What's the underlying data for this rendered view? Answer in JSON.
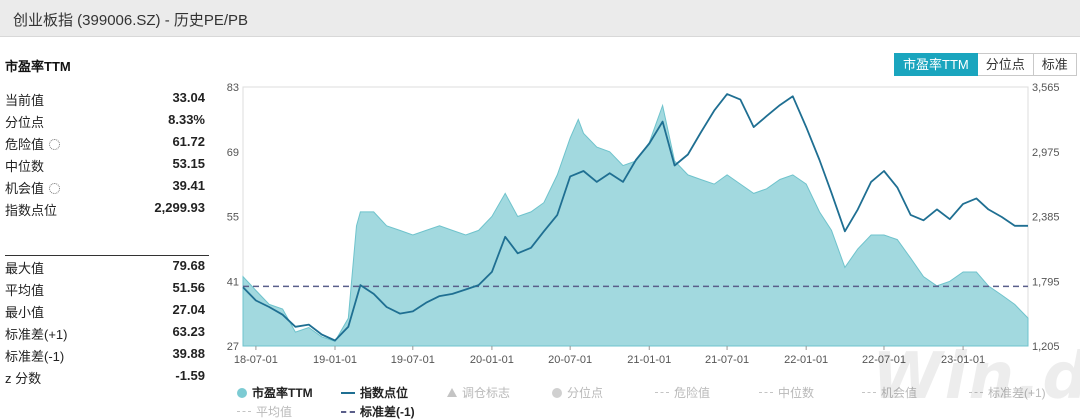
{
  "window": {
    "title": "创业板指 (399006.SZ) - 历史PE/PB"
  },
  "stats": {
    "heading": "市盈率TTM",
    "top": [
      {
        "label": "当前值",
        "value": "33.04",
        "gear": false
      },
      {
        "label": "分位点",
        "value": "8.33%",
        "gear": false
      },
      {
        "label": "危险值",
        "value": "61.72",
        "gear": true
      },
      {
        "label": "中位数",
        "value": "53.15",
        "gear": false
      },
      {
        "label": "机会值",
        "value": "39.41",
        "gear": true
      },
      {
        "label": "指数点位",
        "value": "2,299.93",
        "gear": false
      }
    ],
    "bottom": [
      {
        "label": "最大值",
        "value": "79.68"
      },
      {
        "label": "平均值",
        "value": "51.56"
      },
      {
        "label": "最小值",
        "value": "27.04"
      },
      {
        "label": "标准差(+1)",
        "value": "63.23"
      },
      {
        "label": "标准差(-1)",
        "value": "39.88"
      },
      {
        "label": "z 分数",
        "value": "-1.59"
      }
    ]
  },
  "tabs": [
    {
      "label": "市盈率TTM",
      "active": true
    },
    {
      "label": "分位点",
      "active": false
    },
    {
      "label": "标准",
      "active": false
    }
  ],
  "colors": {
    "pe_fill": "#a2d9df",
    "pe_stroke": "#6fc3cc",
    "index_line": "#1f6f92",
    "std_minus_line": "#5a5e8a",
    "active_tab": "#1aa5be"
  },
  "chart_data": {
    "type": "area",
    "x_tick_labels": [
      "18-07-01",
      "19-01-01",
      "19-07-01",
      "20-01-01",
      "20-07-01",
      "21-01-01",
      "21-07-01",
      "22-01-01",
      "22-07-01",
      "23-01-01"
    ],
    "x_ticks": [
      "2018-07-01",
      "2019-01-01",
      "2019-07-01",
      "2020-01-01",
      "2020-07-01",
      "2021-01-01",
      "2021-07-01",
      "2022-01-01",
      "2022-07-01",
      "2023-01-01"
    ],
    "xlim": [
      "2018-06-01",
      "2023-06-01"
    ],
    "y_left": {
      "ticks": [
        "27",
        "41",
        "55",
        "69",
        "83"
      ],
      "ylim": [
        27,
        83
      ]
    },
    "y_right": {
      "ticks": [
        "1,205",
        "1,795",
        "2,385",
        "2,975",
        "3,565"
      ],
      "ylim": [
        1205,
        3565
      ]
    },
    "std_minus_1": 39.88,
    "series": [
      {
        "name": "市盈率TTM",
        "axis": "left",
        "points": [
          [
            "2018-06-01",
            42
          ],
          [
            "2018-07-01",
            39
          ],
          [
            "2018-08-01",
            36
          ],
          [
            "2018-09-01",
            35
          ],
          [
            "2018-10-01",
            30
          ],
          [
            "2018-11-01",
            31
          ],
          [
            "2018-12-01",
            29
          ],
          [
            "2019-01-01",
            28
          ],
          [
            "2019-02-01",
            33
          ],
          [
            "2019-02-20",
            53
          ],
          [
            "2019-03-01",
            56
          ],
          [
            "2019-04-01",
            56
          ],
          [
            "2019-05-01",
            53
          ],
          [
            "2019-06-01",
            52
          ],
          [
            "2019-07-01",
            51
          ],
          [
            "2019-08-01",
            52
          ],
          [
            "2019-09-01",
            53
          ],
          [
            "2019-10-01",
            52
          ],
          [
            "2019-11-01",
            51
          ],
          [
            "2019-12-01",
            52
          ],
          [
            "2020-01-01",
            55
          ],
          [
            "2020-02-01",
            60
          ],
          [
            "2020-03-01",
            55
          ],
          [
            "2020-04-01",
            56
          ],
          [
            "2020-05-01",
            58
          ],
          [
            "2020-06-01",
            64
          ],
          [
            "2020-07-01",
            72
          ],
          [
            "2020-07-20",
            76
          ],
          [
            "2020-08-01",
            73
          ],
          [
            "2020-09-01",
            70
          ],
          [
            "2020-10-01",
            69
          ],
          [
            "2020-11-01",
            66
          ],
          [
            "2020-12-01",
            67
          ],
          [
            "2021-01-01",
            71
          ],
          [
            "2021-02-01",
            79
          ],
          [
            "2021-03-01",
            67
          ],
          [
            "2021-04-01",
            64
          ],
          [
            "2021-05-01",
            63
          ],
          [
            "2021-06-01",
            62
          ],
          [
            "2021-07-01",
            64
          ],
          [
            "2021-08-01",
            62
          ],
          [
            "2021-09-01",
            60
          ],
          [
            "2021-10-01",
            61
          ],
          [
            "2021-11-01",
            63
          ],
          [
            "2021-12-01",
            64
          ],
          [
            "2022-01-01",
            62
          ],
          [
            "2022-02-01",
            56
          ],
          [
            "2022-03-01",
            52
          ],
          [
            "2022-04-01",
            44
          ],
          [
            "2022-05-01",
            48
          ],
          [
            "2022-06-01",
            51
          ],
          [
            "2022-07-01",
            51
          ],
          [
            "2022-08-01",
            50
          ],
          [
            "2022-09-01",
            46
          ],
          [
            "2022-10-01",
            42
          ],
          [
            "2022-11-01",
            40
          ],
          [
            "2022-12-01",
            41
          ],
          [
            "2023-01-01",
            43
          ],
          [
            "2023-02-01",
            43
          ],
          [
            "2023-03-01",
            40
          ],
          [
            "2023-04-01",
            38
          ],
          [
            "2023-05-01",
            36
          ],
          [
            "2023-06-01",
            33.04
          ]
        ]
      },
      {
        "name": "指数点位",
        "axis": "right",
        "points": [
          [
            "2018-06-01",
            1740
          ],
          [
            "2018-07-01",
            1620
          ],
          [
            "2018-08-01",
            1560
          ],
          [
            "2018-09-01",
            1490
          ],
          [
            "2018-10-01",
            1380
          ],
          [
            "2018-11-01",
            1400
          ],
          [
            "2018-12-01",
            1310
          ],
          [
            "2019-01-01",
            1255
          ],
          [
            "2019-02-01",
            1380
          ],
          [
            "2019-03-01",
            1760
          ],
          [
            "2019-04-01",
            1680
          ],
          [
            "2019-05-01",
            1560
          ],
          [
            "2019-06-01",
            1500
          ],
          [
            "2019-07-01",
            1520
          ],
          [
            "2019-08-01",
            1600
          ],
          [
            "2019-09-01",
            1660
          ],
          [
            "2019-10-01",
            1680
          ],
          [
            "2019-11-01",
            1720
          ],
          [
            "2019-12-01",
            1760
          ],
          [
            "2020-01-01",
            1880
          ],
          [
            "2020-02-01",
            2200
          ],
          [
            "2020-03-01",
            2050
          ],
          [
            "2020-04-01",
            2100
          ],
          [
            "2020-05-01",
            2250
          ],
          [
            "2020-06-01",
            2400
          ],
          [
            "2020-07-01",
            2750
          ],
          [
            "2020-08-01",
            2800
          ],
          [
            "2020-09-01",
            2700
          ],
          [
            "2020-10-01",
            2780
          ],
          [
            "2020-11-01",
            2700
          ],
          [
            "2020-12-01",
            2900
          ],
          [
            "2021-01-01",
            3050
          ],
          [
            "2021-02-01",
            3250
          ],
          [
            "2021-03-01",
            2850
          ],
          [
            "2021-04-01",
            2950
          ],
          [
            "2021-05-01",
            3150
          ],
          [
            "2021-06-01",
            3350
          ],
          [
            "2021-07-01",
            3500
          ],
          [
            "2021-08-01",
            3450
          ],
          [
            "2021-09-01",
            3200
          ],
          [
            "2021-10-01",
            3300
          ],
          [
            "2021-11-01",
            3400
          ],
          [
            "2021-12-01",
            3480
          ],
          [
            "2022-01-01",
            3200
          ],
          [
            "2022-02-01",
            2900
          ],
          [
            "2022-03-01",
            2600
          ],
          [
            "2022-04-01",
            2250
          ],
          [
            "2022-05-01",
            2450
          ],
          [
            "2022-06-01",
            2700
          ],
          [
            "2022-07-01",
            2800
          ],
          [
            "2022-08-01",
            2650
          ],
          [
            "2022-09-01",
            2400
          ],
          [
            "2022-10-01",
            2350
          ],
          [
            "2022-11-01",
            2450
          ],
          [
            "2022-12-01",
            2360
          ],
          [
            "2023-01-01",
            2500
          ],
          [
            "2023-02-01",
            2550
          ],
          [
            "2023-03-01",
            2450
          ],
          [
            "2023-04-01",
            2380
          ],
          [
            "2023-05-01",
            2300
          ],
          [
            "2023-06-01",
            2299.93
          ]
        ]
      }
    ],
    "legend": [
      {
        "label": "市盈率TTM",
        "active": true,
        "swatch": "dot"
      },
      {
        "label": "指数点位",
        "active": true,
        "swatch": "line"
      },
      {
        "label": "调仓标志",
        "active": false,
        "swatch": "triangle"
      },
      {
        "label": "分位点",
        "active": false,
        "swatch": "dot"
      },
      {
        "label": "危险值",
        "active": false,
        "swatch": "dash"
      },
      {
        "label": "中位数",
        "active": false,
        "swatch": "dash"
      },
      {
        "label": "机会值",
        "active": false,
        "swatch": "dash"
      },
      {
        "label": "标准差(+1)",
        "active": false,
        "swatch": "dash"
      },
      {
        "label": "平均值",
        "active": false,
        "swatch": "dash"
      },
      {
        "label": "标准差(-1)",
        "active": true,
        "swatch": "dash-strong"
      }
    ]
  }
}
